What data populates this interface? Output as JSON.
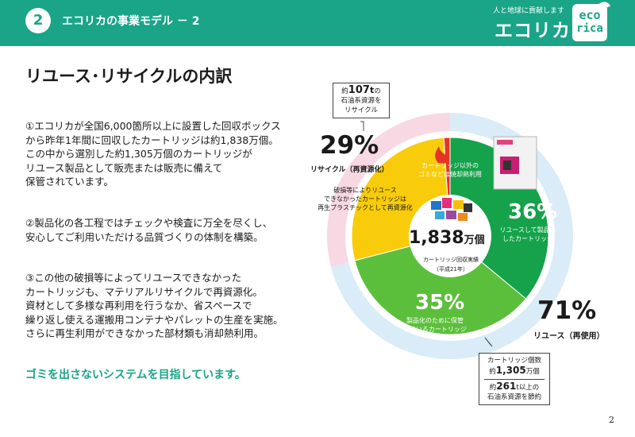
{
  "header": {
    "number": "2",
    "title": "エコリカの事業モデル － 2",
    "brand_tagline": "人と地球に貢献します",
    "brand_name": "エコリカ",
    "logo_line1": "eco",
    "logo_line2": "rica"
  },
  "page_title": "リユース･リサイクルの内訳",
  "paragraphs": [
    {
      "lines": [
        "①エコリカが全国6,000箇所以上に設置した回収ボックス",
        "から昨年1年間に回収したカートリッジは約1,838万個。",
        "この中から選別した約1,305万個のカートリッジが",
        "リユース製品として販売または販売に備えて",
        "保管されています。"
      ]
    },
    {
      "lines": [
        "②製品化の各工程ではチェックや検査に万全を尽くし、",
        "安心してご利用いただける品質づくりの体制を構築。"
      ]
    },
    {
      "lines": [
        "③この他の破損等によってリユースできなかった",
        "カートリッジも、マテリアルリサイクルで再資源化。",
        "資材として多様な再利用を行うなか、省スペースで",
        "繰り返し使える運搬用コンテナやパレットの生産を実施。",
        "さらに再生利用ができなかった部材類も消却熱利用。"
      ]
    }
  ],
  "slogan": "ゴミを出さないシステムを目指しています。",
  "page_number": "2",
  "chart_data": {
    "type": "pie",
    "center": {
      "value": "1,838",
      "unit": "万個",
      "caption": "カートリッジ回収実績",
      "sub": "（平成21年）"
    },
    "inner_segments": [
      {
        "label": "36%",
        "text": [
          "リユースして製品化",
          "したカートリッジ"
        ],
        "value": 36,
        "color": "#15a24a"
      },
      {
        "label": "35%",
        "text": [
          "製品化のために保管",
          "しているカートリッジ"
        ],
        "value": 35,
        "color": "#5cbf3c"
      },
      {
        "label": "",
        "text": [
          "破損等によりリユース",
          "できなかったカートリッジは",
          "再生プラスチックとして再資源化"
        ],
        "value": 28,
        "color": "#f8cc0a"
      },
      {
        "label": "",
        "text": [
          "カートリッジ以外の",
          "ゴミなどは焼却熱利用"
        ],
        "value": 1,
        "color": "#e63322"
      }
    ],
    "outer_groups": [
      {
        "label": "71%",
        "unit": "%",
        "name": "リユース（再使用）",
        "value": 71,
        "color": "#d9ecf8"
      },
      {
        "label": "29%",
        "unit": "%",
        "name": "リサイクル（再資源化）",
        "value": 29,
        "color": "#f7d8e3"
      }
    ],
    "callout_top": {
      "prefix": "約",
      "amount": "107",
      "unit": "t",
      "suffix": "の",
      "lines": [
        "石油系資源を",
        "リサイクル"
      ]
    },
    "callout_bottom": {
      "line1": "カートリッジ個数",
      "prefix": "約",
      "amount": "1,305",
      "amount_unit": "万個",
      "line2_prefix": "約",
      "amount2": "261",
      "amount2_unit": "t",
      "line2_suffix": "以上の",
      "line3": "石油系資源を節約"
    }
  }
}
